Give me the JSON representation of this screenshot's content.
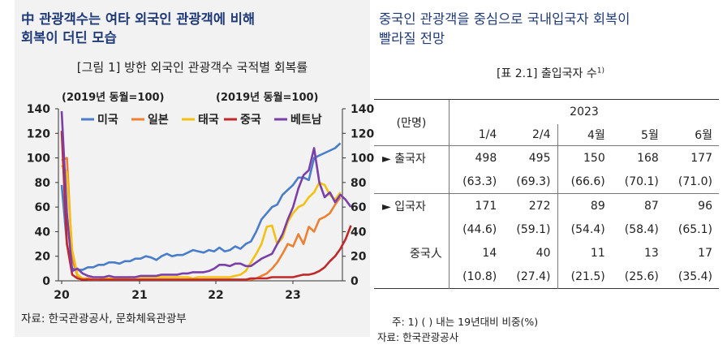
{
  "left": {
    "title_line1": "中 관광객수는 여타 외국인 관광객에 비해",
    "title_line2": "회복이 더딘 모습",
    "figure_title": "[그림 1] 방한 외국인 관광객수 국적별 회복률",
    "source": "자료: 한국관광공사, 문화체육관광부"
  },
  "right": {
    "title_line1": "중국인 관광객을 중심으로 국내입국자 회복이",
    "title_line2": "빨라질 전망",
    "table_title": "[표 2.1] 출입국자 수",
    "table_title_sup": "1)",
    "note": "주: 1) ( ) 내는 19년대비 비중(%)",
    "source": "자료: 한국관광공사"
  },
  "table": {
    "unit": "(만명)",
    "year": "2023",
    "columns": [
      "1/4",
      "2/4",
      "4월",
      "5월",
      "6월"
    ],
    "rows": [
      {
        "label": "► 출국자",
        "values": [
          "498",
          "495",
          "150",
          "168",
          "177"
        ],
        "shares": [
          "(63.3)",
          "(69.3)",
          "(66.6)",
          "(70.1)",
          "(71.0)"
        ]
      },
      {
        "label": "► 입국자",
        "values": [
          "171",
          "272",
          "89",
          "87",
          "96"
        ],
        "shares": [
          "(44.6)",
          "(59.1)",
          "(54.4)",
          "(58.4)",
          "(65.1)"
        ]
      },
      {
        "label": "중국人",
        "values": [
          "14",
          "40",
          "11",
          "13",
          "17"
        ],
        "shares": [
          "(10.8)",
          "(27.4)",
          "(21.5)",
          "(25.6)",
          "(35.4)"
        ]
      }
    ]
  },
  "chart_data": {
    "type": "line",
    "ylabel_left": "(2019년 동월=100)",
    "ylabel_right": "(2019년 동월=100)",
    "ylim": [
      0,
      140
    ],
    "yticks": [
      "0",
      "20",
      "40",
      "60",
      "80",
      "100",
      "120",
      "140"
    ],
    "xticks": [
      "20",
      "21",
      "22",
      "23"
    ],
    "legend_position": "top",
    "x_start": "2020-01",
    "series": [
      {
        "name": "미국",
        "color": "#4a7dc9",
        "values": [
          78,
          30,
          10,
          9,
          9,
          11,
          11,
          13,
          13,
          15,
          15,
          14,
          16,
          16,
          18,
          18,
          20,
          19,
          17,
          20,
          22,
          20,
          21,
          21,
          23,
          25,
          24,
          23,
          25,
          24,
          27,
          24,
          25,
          28,
          26,
          30,
          32,
          40,
          50,
          55,
          60,
          62,
          70,
          74,
          78,
          84,
          84,
          82,
          100,
          102,
          104,
          106,
          108,
          112
        ]
      },
      {
        "name": "일본",
        "color": "#ee8033",
        "values": [
          98,
          100,
          18,
          4,
          2,
          2,
          1,
          1,
          1,
          1,
          1,
          1,
          1,
          1,
          1,
          1,
          1,
          1,
          1,
          1,
          1,
          1,
          1,
          1,
          1,
          1,
          1,
          1,
          1,
          1,
          1,
          1,
          1,
          1,
          1,
          1,
          1,
          2,
          4,
          6,
          10,
          15,
          22,
          30,
          28,
          38,
          30,
          44,
          40,
          50,
          52,
          55,
          62,
          68
        ]
      },
      {
        "name": "태국",
        "color": "#f5c010",
        "values": [
          94,
          88,
          25,
          5,
          2,
          1,
          1,
          1,
          2,
          2,
          2,
          3,
          2,
          3,
          3,
          3,
          3,
          3,
          3,
          3,
          3,
          3,
          3,
          3,
          3,
          2,
          3,
          3,
          3,
          3,
          3,
          3,
          3,
          4,
          5,
          8,
          15,
          22,
          30,
          44,
          45,
          30,
          35,
          48,
          55,
          60,
          62,
          68,
          72,
          80,
          78,
          70,
          66,
          72
        ]
      },
      {
        "name": "중국",
        "color": "#c0282a",
        "values": [
          122,
          30,
          5,
          2,
          1,
          1,
          1,
          1,
          1,
          1,
          1,
          1,
          1,
          1,
          1,
          1,
          1,
          1,
          1,
          1,
          1,
          1,
          1,
          1,
          1,
          1,
          1,
          1,
          1,
          1,
          1,
          1,
          1,
          1,
          1,
          1,
          2,
          2,
          2,
          2,
          3,
          3,
          3,
          3,
          3,
          4,
          5,
          5,
          6,
          8,
          11,
          16,
          20,
          26,
          34,
          45
        ]
      },
      {
        "name": "베트남",
        "color": "#7a3fa8",
        "values": [
          138,
          55,
          8,
          10,
          6,
          4,
          3,
          3,
          3,
          4,
          3,
          3,
          3,
          3,
          3,
          4,
          4,
          4,
          4,
          5,
          5,
          5,
          5,
          6,
          6,
          7,
          7,
          7,
          8,
          10,
          13,
          13,
          12,
          14,
          14,
          12,
          12,
          15,
          18,
          20,
          22,
          30,
          38,
          50,
          60,
          75,
          86,
          90,
          108,
          80,
          68,
          72,
          64,
          70,
          66,
          60
        ]
      }
    ]
  }
}
